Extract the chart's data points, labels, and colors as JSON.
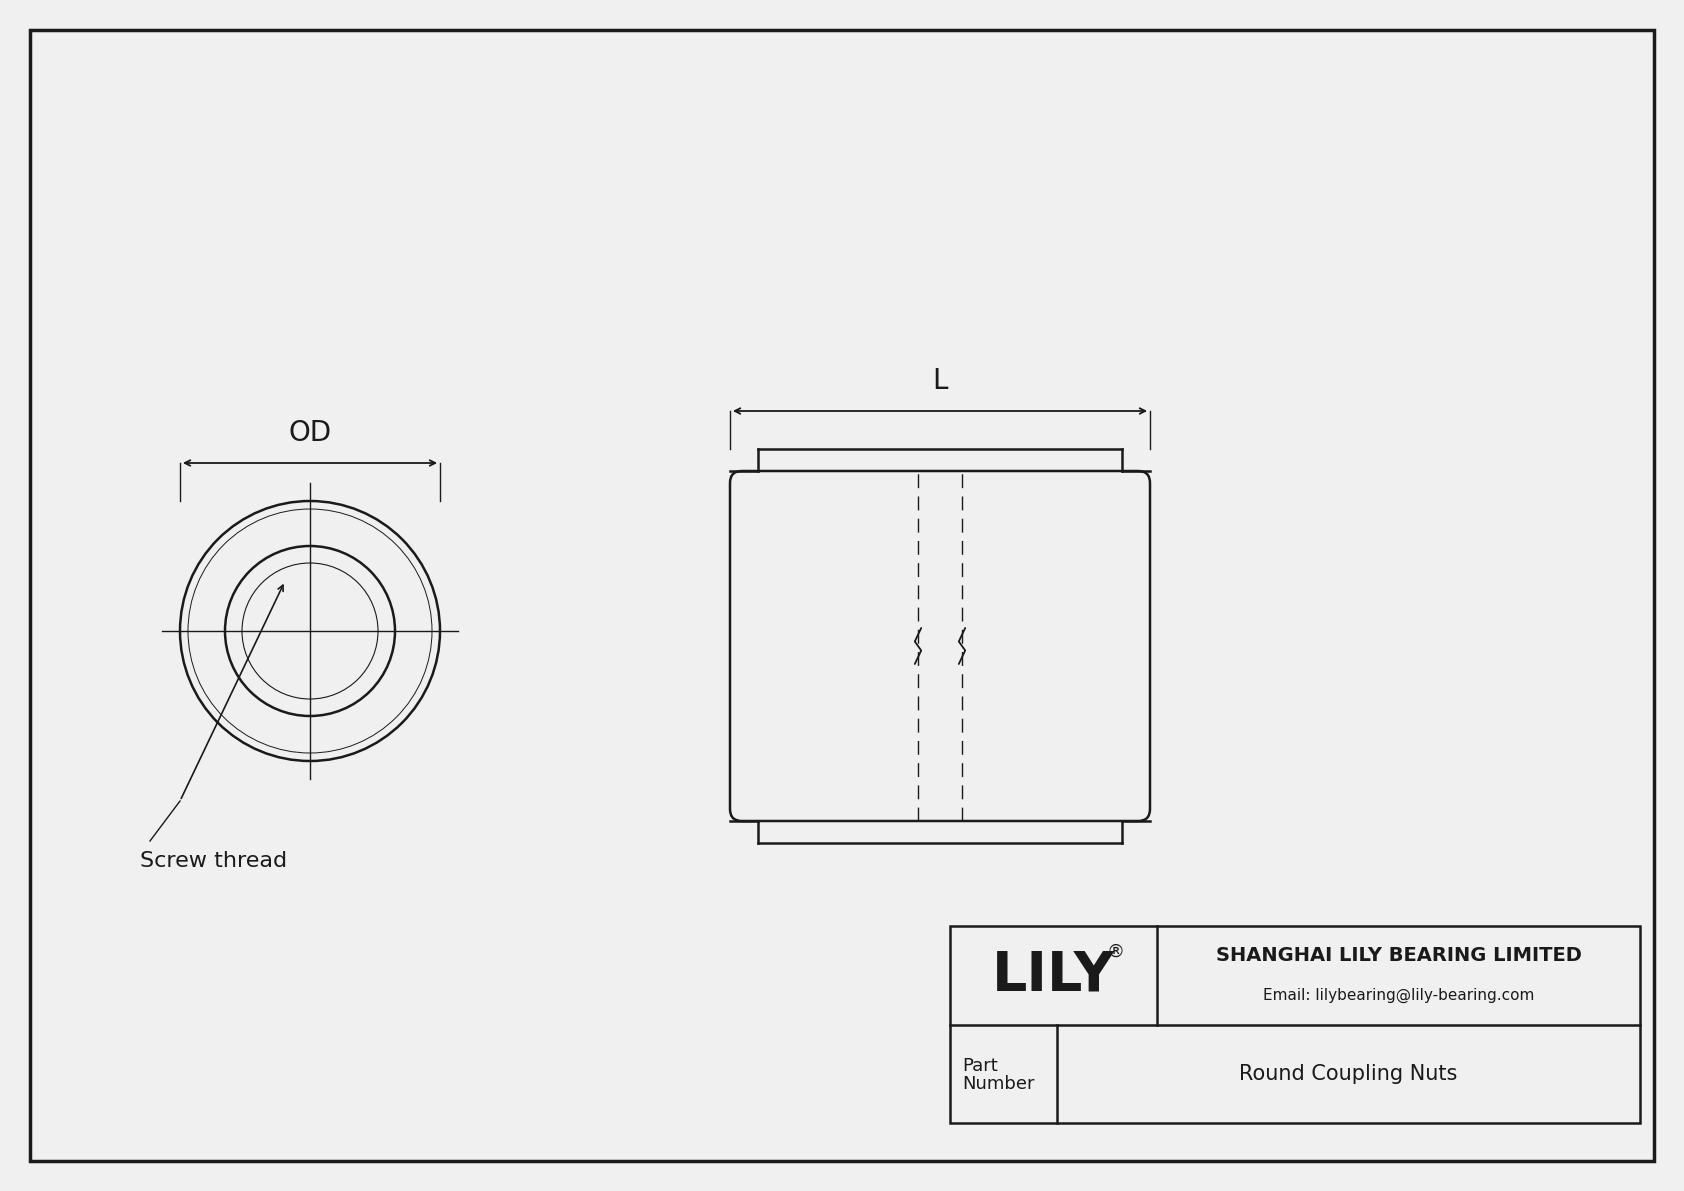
{
  "bg_color": "#f0f0f0",
  "line_color": "#1a1a1a",
  "title_company": "SHANGHAI LILY BEARING LIMITED",
  "title_email": "Email: lilybearing@lily-bearing.com",
  "brand": "LILY",
  "part_label_line1": "Part",
  "part_label_line2": "Number",
  "part_name": "Round Coupling Nuts",
  "dim_od": "OD",
  "dim_l": "L",
  "screw_thread_label": "Screw thread"
}
